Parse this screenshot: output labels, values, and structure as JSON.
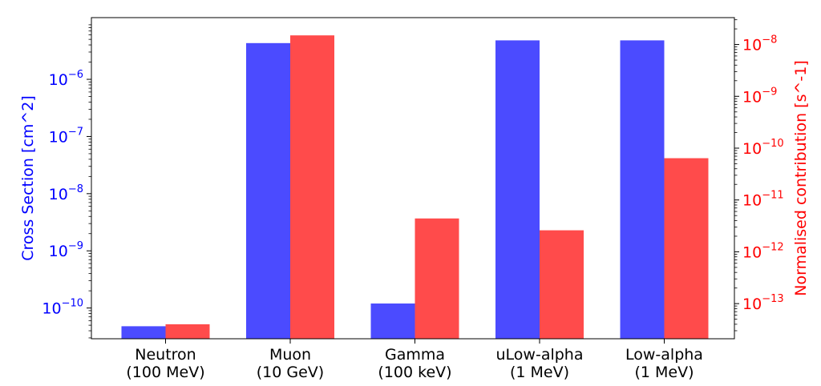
{
  "chart_data": {
    "type": "bar",
    "categories": [
      [
        "Neutron",
        "(100 MeV)"
      ],
      [
        "Muon",
        "(10 GeV)"
      ],
      [
        "Gamma",
        "(100 keV)"
      ],
      [
        "uLow-alpha",
        "(1 MeV)"
      ],
      [
        "Low-alpha",
        "(1 MeV)"
      ]
    ],
    "series": [
      {
        "axis": "left",
        "color": "#4b4bff",
        "values": [
          4.8e-11,
          4.3e-06,
          1.2e-10,
          4.8e-06,
          4.8e-06
        ]
      },
      {
        "axis": "right",
        "color": "#ff4b4b",
        "values": [
          4e-14,
          1.5e-08,
          4.4e-12,
          2.6e-12,
          6.4e-11
        ]
      }
    ],
    "ylabel_left": "Cross Section [cm^2]",
    "ylabel_right": "Normalised contribution [s^-1]",
    "ylim_left": [
      2.9e-11,
      1.2e-05
    ],
    "ylim_right": [
      2.1e-14,
      3.3e-08
    ],
    "yscale": "log",
    "left_ticks": [
      {
        "exp": "-10",
        "value": 1e-10
      },
      {
        "exp": "-9",
        "value": 1e-09
      },
      {
        "exp": "-8",
        "value": 1e-08
      },
      {
        "exp": "-7",
        "value": 1e-07
      },
      {
        "exp": "-6",
        "value": 1e-06
      }
    ],
    "right_ticks": [
      {
        "exp": "-13",
        "value": 1e-13
      },
      {
        "exp": "-12",
        "value": 1e-12
      },
      {
        "exp": "-11",
        "value": 1e-11
      },
      {
        "exp": "-10",
        "value": 1e-10
      },
      {
        "exp": "-9",
        "value": 1e-09
      },
      {
        "exp": "-8",
        "value": 1e-08
      }
    ],
    "tick_base": "10",
    "grid": false,
    "left_color": "#0000ff",
    "right_color": "#ff0000"
  }
}
